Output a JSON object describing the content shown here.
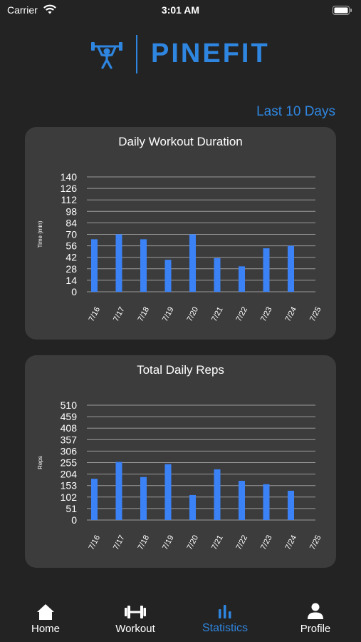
{
  "status_bar": {
    "carrier": "Carrier",
    "time": "3:01 AM"
  },
  "brand": {
    "name": "PINEFIT",
    "logo_icon": "weightlifter-icon"
  },
  "range_label": "Last 10 Days",
  "colors": {
    "accent": "#2f86e0",
    "bar": "#3b82f6",
    "card": "#3c3c3c",
    "background": "#232323"
  },
  "chart_data": [
    {
      "type": "bar",
      "title": "Daily Workout Duration",
      "ylabel": "Time (min)",
      "xlabel": "",
      "categories": [
        "7/16",
        "7/17",
        "7/18",
        "7/19",
        "7/20",
        "7/21",
        "7/22",
        "7/23",
        "7/24",
        "7/25"
      ],
      "values": [
        64,
        70,
        64,
        39,
        70,
        41,
        31,
        53,
        56,
        0
      ],
      "yticks": [
        0,
        14,
        28,
        42,
        56,
        70,
        84,
        98,
        112,
        126,
        140
      ],
      "ylim": [
        0,
        140
      ],
      "grid": true
    },
    {
      "type": "bar",
      "title": "Total Daily Reps",
      "ylabel": "Reps",
      "xlabel": "",
      "categories": [
        "7/16",
        "7/17",
        "7/18",
        "7/19",
        "7/20",
        "7/21",
        "7/22",
        "7/23",
        "7/24",
        "7/25"
      ],
      "values": [
        183,
        258,
        191,
        248,
        111,
        225,
        174,
        159,
        130,
        0
      ],
      "yticks": [
        0,
        51,
        102,
        153,
        204,
        255,
        306,
        357,
        408,
        459,
        510
      ],
      "ylim": [
        0,
        510
      ],
      "grid": true
    }
  ],
  "tabs": [
    {
      "label": "Home",
      "icon": "home-icon",
      "active": false
    },
    {
      "label": "Workout",
      "icon": "dumbbell-icon",
      "active": false
    },
    {
      "label": "Statistics",
      "icon": "bar-chart-icon",
      "active": true
    },
    {
      "label": "Profile",
      "icon": "person-icon",
      "active": false
    }
  ]
}
